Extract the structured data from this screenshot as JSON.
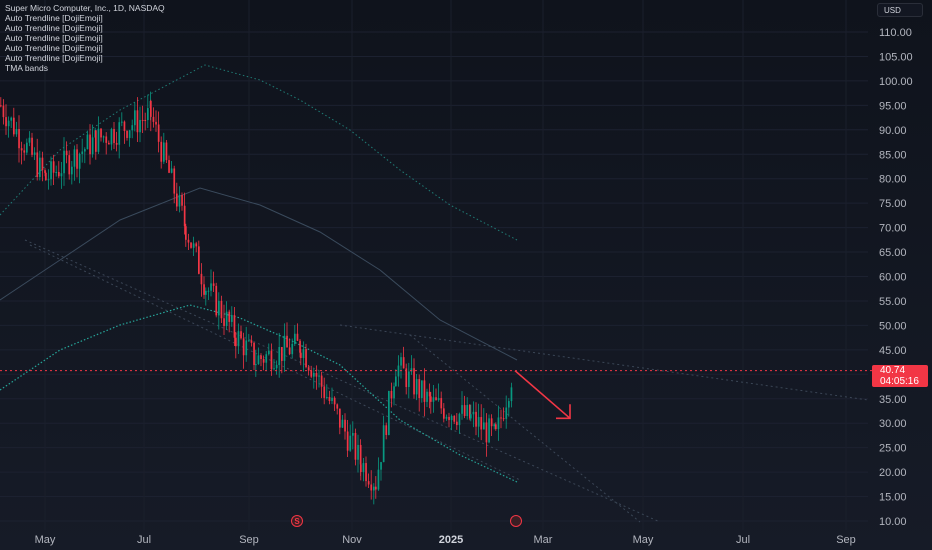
{
  "legend": {
    "symbol": "Super Micro Computer, Inc., 1D, NASDAQ",
    "indicators": [
      "Auto Trendline [DojiEmoji]",
      "Auto Trendline [DojiEmoji]",
      "Auto Trendline [DojiEmoji]",
      "Auto Trendline [DojiEmoji]",
      "Auto Trendline [DojiEmoji]",
      "TMA bands"
    ]
  },
  "currency": "USD",
  "last_price": {
    "price": "40.74",
    "countdown": "04:05:16"
  },
  "events": [
    {
      "label": "S",
      "icon": "split-event-icon",
      "month_pos": "early Oct"
    },
    {
      "label": "",
      "icon": "earnings-event-icon",
      "month_pos": "mid Feb"
    }
  ],
  "colors": {
    "up": "#089981",
    "down": "#f23645",
    "bg": "#131722",
    "text": "#b2b5be",
    "band": "#26a69a",
    "mid": "#3a4a5c"
  },
  "chart_data": {
    "type": "candlestick",
    "x_ticks": [
      "May",
      "Jul",
      "Sep",
      "Nov",
      "2025",
      "Mar",
      "May",
      "Jul",
      "Sep"
    ],
    "y_ticks": [
      "10.00",
      "15.00",
      "20.00",
      "25.00",
      "30.00",
      "35.00",
      "40.00",
      "45.00",
      "50.00",
      "55.00",
      "60.00",
      "65.00",
      "70.00",
      "75.00",
      "80.00",
      "85.00",
      "90.00",
      "95.00",
      "100.00",
      "105.00",
      "110.00"
    ],
    "ylim": [
      10,
      112
    ],
    "ohlc_summary": [
      {
        "period": "mid Apr",
        "close": 95
      },
      {
        "period": "May",
        "close": 80
      },
      {
        "period": "Jun",
        "close": 88
      },
      {
        "period": "early Jul",
        "close": 93
      },
      {
        "period": "late Jul",
        "close": 70
      },
      {
        "period": "early Aug",
        "close": 58
      },
      {
        "period": "late Aug",
        "close": 48
      },
      {
        "period": "Sep",
        "close": 43
      },
      {
        "period": "Oct",
        "close": 46
      },
      {
        "period": "early Nov",
        "close": 22
      },
      {
        "period": "mid Nov",
        "close": 18
      },
      {
        "period": "late Nov",
        "close": 42
      },
      {
        "period": "Dec",
        "close": 34
      },
      {
        "period": "Jan",
        "close": 31
      },
      {
        "period": "early Feb",
        "close": 27
      },
      {
        "period": "mid Feb",
        "close": 40.74
      }
    ],
    "last_price": 40.74,
    "forecast_arrow": {
      "from": 40.74,
      "to": 31,
      "direction": "down"
    }
  }
}
